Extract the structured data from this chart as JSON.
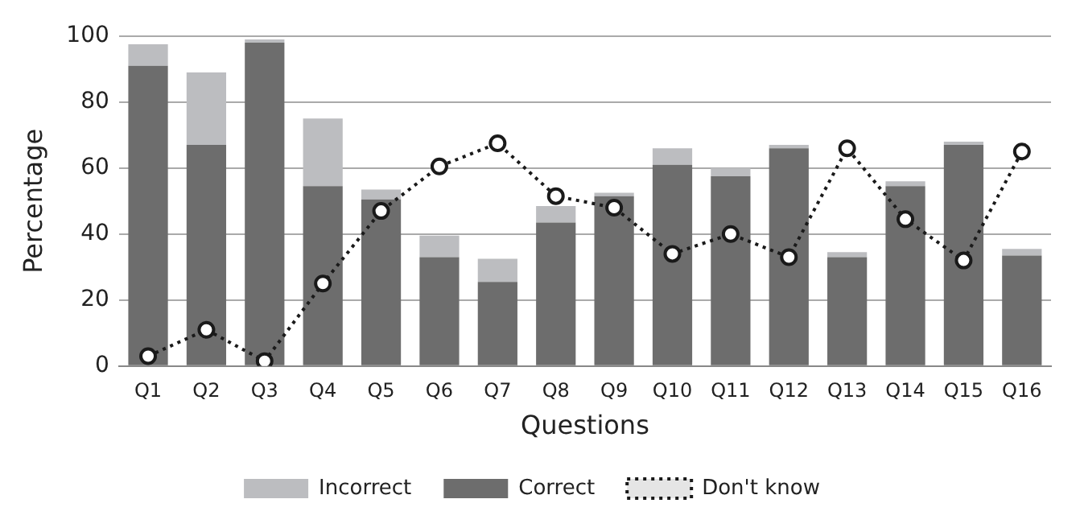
{
  "chart_data": {
    "type": "bar",
    "stacked": true,
    "xlabel": "Questions",
    "ylabel": "Percentage",
    "categories": [
      "Q1",
      "Q2",
      "Q3",
      "Q4",
      "Q5",
      "Q6",
      "Q7",
      "Q8",
      "Q9",
      "Q10",
      "Q11",
      "Q12",
      "Q13",
      "Q14",
      "Q15",
      "Q16"
    ],
    "series": [
      {
        "name": "Correct",
        "color": "#6d6d6d",
        "values": [
          91,
          67,
          98,
          54.5,
          50.5,
          33,
          25.5,
          43.5,
          51.5,
          61,
          57.5,
          66,
          33,
          54.5,
          67,
          33.5
        ]
      },
      {
        "name": "Incorrect",
        "color": "#bcbdc0",
        "values": [
          6.5,
          22,
          1,
          20.5,
          3,
          6.5,
          7,
          5,
          1,
          5,
          2.5,
          1,
          1.5,
          1.5,
          1,
          2
        ]
      },
      {
        "name": "Don't know",
        "type": "line",
        "color": "#1a1a1a",
        "marker": "circle",
        "line_style": "dotted",
        "values": [
          3,
          11,
          1.5,
          25,
          47,
          60.5,
          67.5,
          51.5,
          48,
          34,
          40,
          33,
          66,
          44.5,
          32,
          65
        ]
      }
    ],
    "ylim": [
      0,
      100
    ],
    "yticks": [
      0,
      20,
      40,
      60,
      80,
      100
    ],
    "grid": "y",
    "legend": "bottom"
  }
}
